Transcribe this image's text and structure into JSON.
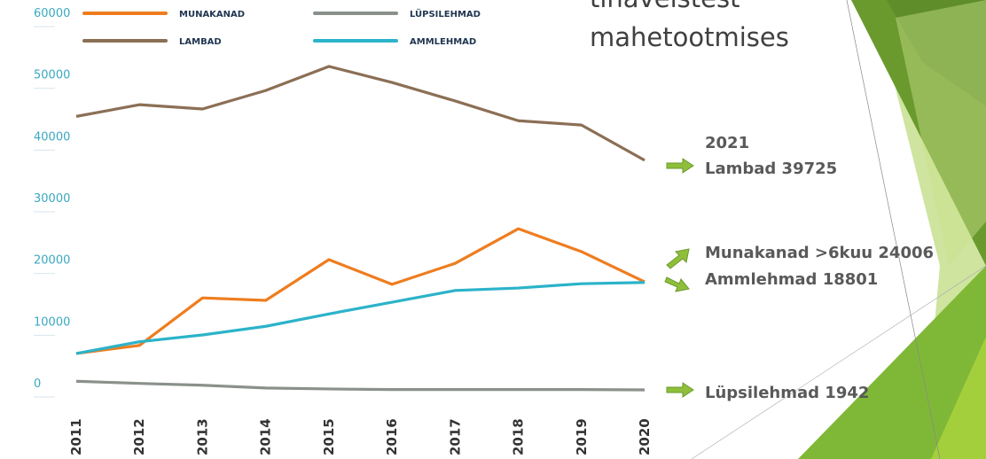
{
  "chart_data": {
    "type": "line",
    "title_lines": [
      "tihaveistest",
      "mahetootmises"
    ],
    "categories": [
      "2011",
      "2012",
      "2013",
      "2014",
      "2015",
      "2016",
      "2017",
      "2018",
      "2019",
      "2020"
    ],
    "series": [
      {
        "name": "MUNAKANAD",
        "color": "#ee7d1f",
        "values": [
          5900,
          7200,
          14900,
          14500,
          21100,
          17100,
          20500,
          26100,
          22400,
          17500
        ]
      },
      {
        "name": "LAMBAD",
        "color": "#8b6f55",
        "values": [
          44300,
          46200,
          45500,
          48500,
          52400,
          49800,
          46800,
          43600,
          42900,
          37200
        ]
      },
      {
        "name": "LÜPSILEHMAD",
        "color": "#8a918b",
        "values": [
          1400,
          1050,
          750,
          300,
          150,
          50,
          50,
          50,
          50,
          0
        ]
      },
      {
        "name": "AMMLEHMAD",
        "color": "#2bb3c9",
        "values": [
          5900,
          7800,
          8900,
          10300,
          12300,
          14200,
          16100,
          16500,
          17200,
          17400
        ]
      }
    ],
    "ylim": [
      0,
      60000
    ],
    "yticks": [
      0,
      10000,
      20000,
      30000,
      40000,
      50000,
      60000
    ],
    "annotations": [
      "2021",
      "Lambad 39725",
      "Munakanad >6kuu 24006",
      "Ammlehmad 18801",
      "Lüpsilehmad 1942"
    ]
  }
}
